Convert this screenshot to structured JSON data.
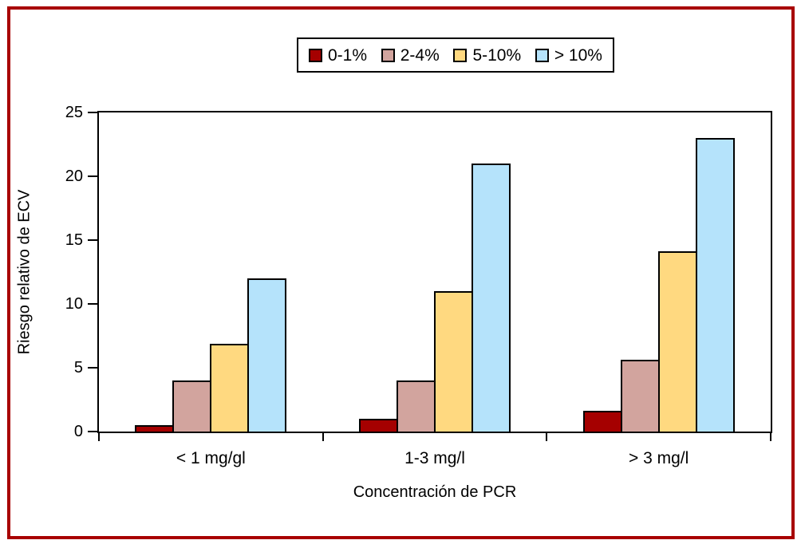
{
  "colors": {
    "figure_border": "#a80000",
    "axis": "#000000",
    "background": "#ffffff"
  },
  "chart_data": {
    "type": "bar",
    "title": "",
    "xlabel": "Concentración de PCR",
    "ylabel": "Riesgo relativo de ECV",
    "categories": [
      "< 1 mg/gl",
      "1-3 mg/l",
      "> 3 mg/l"
    ],
    "series": [
      {
        "name": "0-1%",
        "color": "#a50000",
        "values": [
          0.5,
          1.0,
          1.6
        ]
      },
      {
        "name": "2-4%",
        "color": "#d2a49e",
        "values": [
          4.0,
          4.0,
          5.6
        ]
      },
      {
        "name": "5-10%",
        "color": "#ffd980",
        "values": [
          6.9,
          11.0,
          14.1
        ]
      },
      {
        "name": "> 10%",
        "color": "#b5e3fb",
        "values": [
          12.0,
          21.0,
          23.0
        ]
      }
    ],
    "ylim": [
      0,
      25
    ],
    "yticks": [
      0,
      5,
      10,
      15,
      20,
      25
    ],
    "legend_position": "top-center",
    "grid": false
  }
}
